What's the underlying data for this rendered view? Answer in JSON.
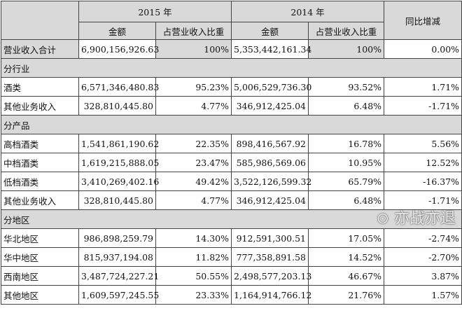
{
  "header": {
    "year_2015": "2015 年",
    "year_2014": "2014 年",
    "amount": "金额",
    "share": "占营业收入比重",
    "yoy": "同比增减"
  },
  "rows": [
    {
      "type": "total",
      "label": "营业收入合计",
      "a2015": "6,900,156,926.63",
      "s2015": "100%",
      "a2014": "5,353,442,161.34",
      "s2014": "100%",
      "yoy": "0.00%"
    },
    {
      "type": "section",
      "label": "分行业"
    },
    {
      "type": "data",
      "label": "酒类",
      "a2015": "6,571,346,480.83",
      "s2015": "95.23%",
      "a2014": "5,006,529,736.30",
      "s2014": "93.52%",
      "yoy": "1.71%"
    },
    {
      "type": "data",
      "label": "其他业务收入",
      "a2015": "328,810,445.80",
      "s2015": "4.77%",
      "a2014": "346,912,425.04",
      "s2014": "6.48%",
      "yoy": "-1.71%"
    },
    {
      "type": "section",
      "label": "分产品"
    },
    {
      "type": "data",
      "label": "高档酒类",
      "a2015": "1,541,861,190.62",
      "s2015": "22.35%",
      "a2014": "898,416,567.92",
      "s2014": "16.78%",
      "yoy": "5.56%"
    },
    {
      "type": "data",
      "label": "中档酒类",
      "a2015": "1,619,215,888.05",
      "s2015": "23.47%",
      "a2014": "585,986,569.06",
      "s2014": "10.95%",
      "yoy": "12.52%"
    },
    {
      "type": "data",
      "label": "低档酒类",
      "a2015": "3,410,269,402.16",
      "s2015": "49.42%",
      "a2014": "3,522,126,599.32",
      "s2014": "65.79%",
      "yoy": "-16.37%"
    },
    {
      "type": "data",
      "label": "其他业务收入",
      "a2015": "328,810,445.80",
      "s2015": "4.77%",
      "a2014": "346,912,425.04",
      "s2014": "6.48%",
      "yoy": "-1.71%"
    },
    {
      "type": "section",
      "label": "分地区"
    },
    {
      "type": "data",
      "label": "华北地区",
      "a2015": "986,898,259.79",
      "s2015": "14.30%",
      "a2014": "912,591,300.51",
      "s2014": "17.05%",
      "yoy": "-2.74%"
    },
    {
      "type": "data",
      "label": "华中地区",
      "a2015": "815,937,194.08",
      "s2015": "11.82%",
      "a2014": "777,358,891.58",
      "s2014": "14.52%",
      "yoy": "-2.70%"
    },
    {
      "type": "data",
      "label": "西南地区",
      "a2015": "3,487,724,227.21",
      "s2015": "50.55%",
      "a2014": "2,498,577,203.13",
      "s2014": "46.67%",
      "yoy": "3.87%"
    },
    {
      "type": "data",
      "label": "其他地区",
      "a2015": "1,609,597,245.55",
      "s2015": "23.33%",
      "a2014": "1,164,914,766.12",
      "s2014": "21.76%",
      "yoy": "1.57%"
    }
  ],
  "watermark": "亦战亦退",
  "colors": {
    "header_bg": "#d9d9d9",
    "border": "#444444"
  }
}
